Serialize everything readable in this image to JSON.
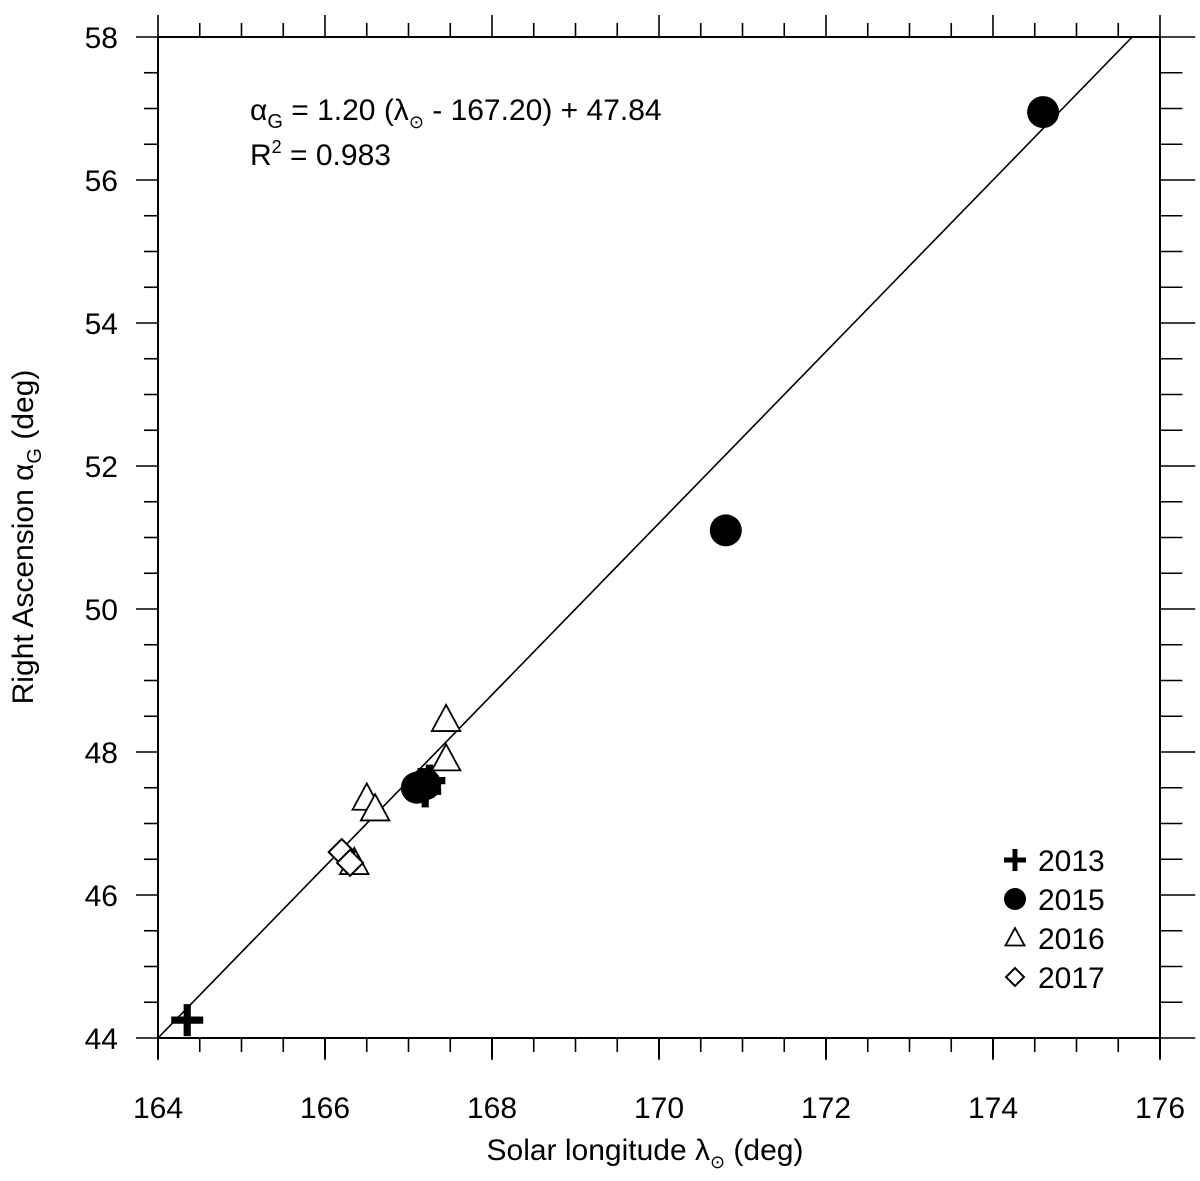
{
  "chart_data": {
    "type": "scatter",
    "xlabel_main": "Solar longitude λ",
    "xlabel_sub": "⊙",
    "xlabel_unit": " (deg)",
    "ylabel_main": "Right Ascension α",
    "ylabel_sub": "G",
    "ylabel_unit": " (deg)",
    "xlim": [
      164,
      176
    ],
    "ylim": [
      44,
      58
    ],
    "xticks": [
      164,
      166,
      168,
      170,
      172,
      174,
      176
    ],
    "yticks": [
      44,
      46,
      48,
      50,
      52,
      54,
      56,
      58
    ],
    "x_minor_step": 0.5,
    "y_minor_step": 0.5,
    "grid": false,
    "legend_position": "bottom-right",
    "series": [
      {
        "name": "2013",
        "marker": "plus",
        "points": [
          {
            "x": 164.35,
            "y": 44.25
          },
          {
            "x": 167.2,
            "y": 47.45
          },
          {
            "x": 167.25,
            "y": 47.6
          },
          {
            "x": 167.15,
            "y": 47.55
          }
        ]
      },
      {
        "name": "2015",
        "marker": "circle",
        "points": [
          {
            "x": 167.1,
            "y": 47.5
          },
          {
            "x": 167.2,
            "y": 47.55
          },
          {
            "x": 170.8,
            "y": 51.1
          },
          {
            "x": 174.6,
            "y": 56.95
          }
        ]
      },
      {
        "name": "2016",
        "marker": "triangle",
        "points": [
          {
            "x": 166.5,
            "y": 47.35
          },
          {
            "x": 166.6,
            "y": 47.2
          },
          {
            "x": 166.35,
            "y": 46.45
          },
          {
            "x": 167.45,
            "y": 48.45
          },
          {
            "x": 167.45,
            "y": 47.9
          }
        ]
      },
      {
        "name": "2017",
        "marker": "diamond",
        "points": [
          {
            "x": 166.2,
            "y": 46.6
          },
          {
            "x": 166.3,
            "y": 46.45
          }
        ]
      }
    ],
    "fit": {
      "slope": 1.2,
      "x0": 167.2,
      "intercept": 47.84
    },
    "annotations": {
      "equation": {
        "lhs_main": "α",
        "lhs_sub": "G",
        "mid1": " = 1.20 (λ",
        "lam_sub": "⊙",
        "mid2": " - 167.20) + 47.84"
      },
      "r2": {
        "main": "R",
        "sup": "2",
        "rest": " = 0.983"
      }
    }
  }
}
